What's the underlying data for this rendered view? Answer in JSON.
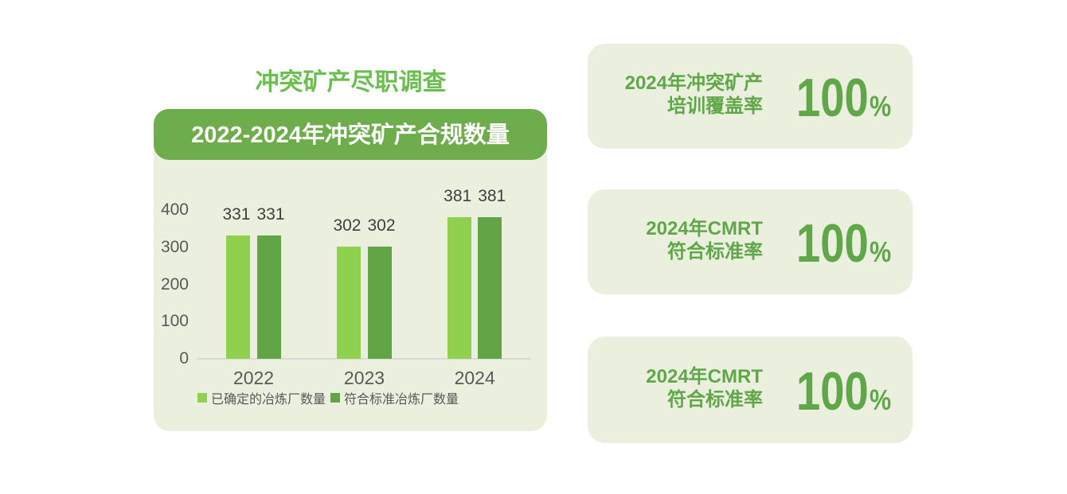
{
  "left_panel": {
    "title": "冲突矿产尽职调查",
    "chart_header": "2022-2024年冲突矿产合规数量"
  },
  "chart_data": {
    "type": "bar",
    "title": "2022-2024年冲突矿产合规数量",
    "categories": [
      "2022",
      "2023",
      "2024"
    ],
    "series": [
      {
        "name": "已确定的冶炼厂数量",
        "color": "#8fd04f",
        "values": [
          331,
          302,
          381
        ]
      },
      {
        "name": "符合标准冶炼厂数量",
        "color": "#61a546",
        "values": [
          331,
          302,
          381
        ]
      }
    ],
    "ylim": [
      0,
      400
    ],
    "yticks": [
      0,
      100,
      200,
      300,
      400
    ],
    "grid": false,
    "legend_position": "bottom",
    "value_labels": true
  },
  "stat_cards": [
    {
      "line1": "2024年冲突矿产",
      "line2": "培训覆盖率",
      "value": "100",
      "unit": "%"
    },
    {
      "line1": "2024年CMRT",
      "line2": "符合标准率",
      "value": "100",
      "unit": "%"
    },
    {
      "line1": "2024年CMRT",
      "line2": "符合标准率",
      "value": "100",
      "unit": "%"
    }
  ],
  "colors": {
    "card_bg": "#ebf0de",
    "header_green": "#6dad4c",
    "title_green": "#6cbe50",
    "stat_green": "#5fa748",
    "bar_light": "#8fd04f",
    "bar_dark": "#61a546",
    "axis_gray": "#d9d9d9",
    "label_gray": "#595959",
    "value_gray": "#3f3f3f"
  }
}
